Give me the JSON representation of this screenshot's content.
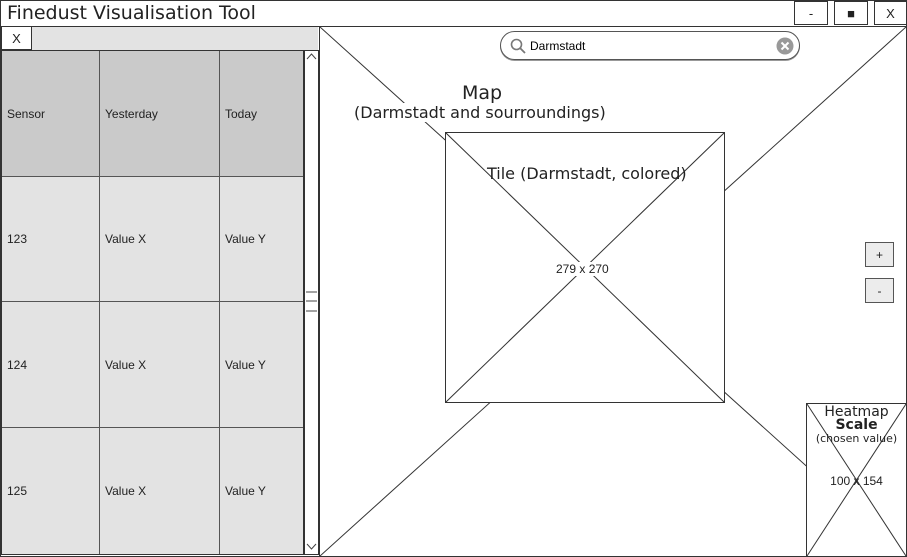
{
  "app": {
    "title": "Finedust Visualisation Tool"
  },
  "window_controls": {
    "minimize": "-",
    "maximize": "■",
    "close": "X"
  },
  "panel": {
    "close_label": "X"
  },
  "table": {
    "headers": [
      "Sensor",
      "Yesterday",
      "Today"
    ],
    "rows": [
      [
        "123",
        "Value X",
        "Value Y"
      ],
      [
        "124",
        "Value X",
        "Value Y"
      ],
      [
        "125",
        "Value X",
        "Value Y"
      ]
    ]
  },
  "search": {
    "value": "Darmstadt"
  },
  "map": {
    "title": "Map",
    "subtitle": "(Darmstadt and sourroundings)",
    "tile": {
      "title": "Tile (Darmstadt, colored)",
      "dimensions": "279 x 270"
    },
    "zoom_in": "+",
    "zoom_out": "-"
  },
  "heatmap": {
    "title_line1": "Heatmap",
    "title_line2": "Scale",
    "subtitle": "(chosen value)",
    "dimensions": "100 x 154"
  }
}
